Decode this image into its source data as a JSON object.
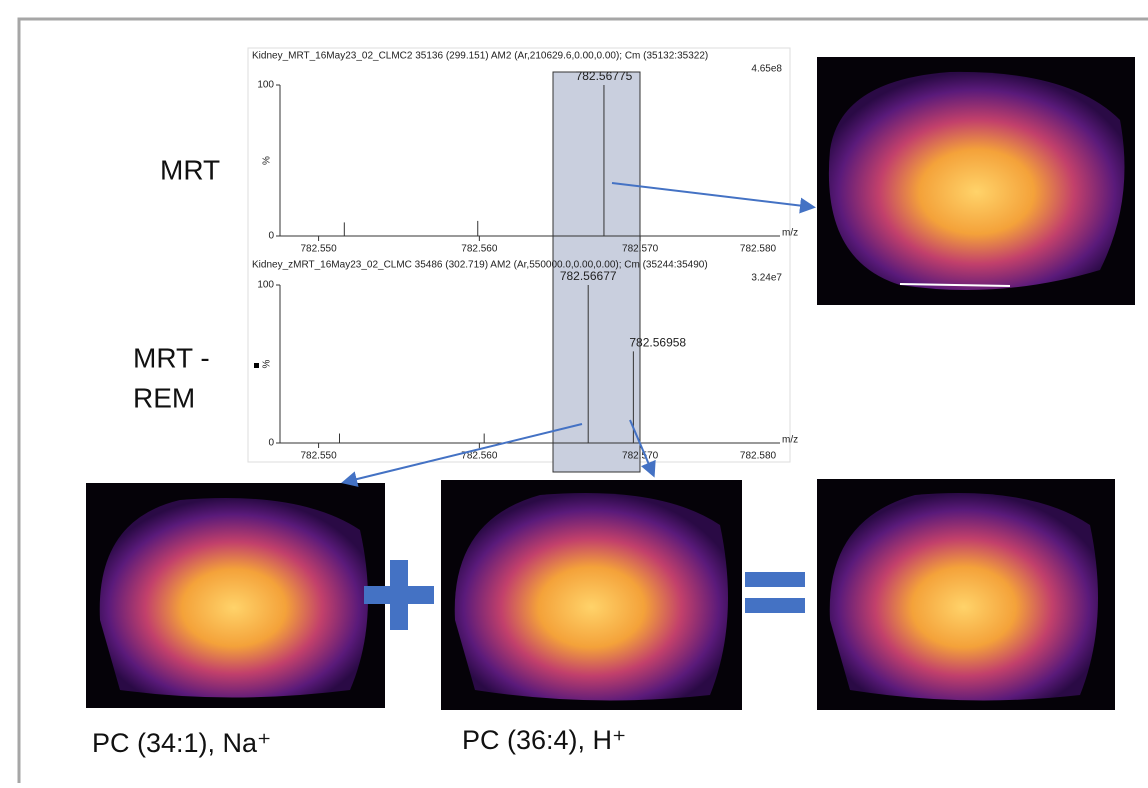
{
  "labels": {
    "mrt": "MRT",
    "mrt_rem_1": "MRT -",
    "mrt_rem_2": "REM",
    "image_1": "PC (34:1), Na⁺",
    "image_2": "PC (36:4), H⁺"
  },
  "spectra": [
    {
      "header": "Kidney_MRT_16May23_02_CLMC2 35136 (299.151) AM2 (Ar,210629.6,0.00,0.00); Cm (35132:35322)",
      "intensity": "4.65e8",
      "y_axis_label": "%",
      "x_axis_label": "m/z",
      "xlim": [
        782.5476,
        782.5787
      ],
      "ylim": [
        0,
        100
      ],
      "yticks": [
        0,
        100
      ],
      "xticks": [
        {
          "value": 782.55,
          "label": "782.550"
        },
        {
          "value": 782.56,
          "label": "782.560"
        },
        {
          "value": 782.57,
          "label": "782.570"
        },
        {
          "value": 782.58,
          "label": "782.580"
        }
      ],
      "peaks": [
        {
          "x": 782.5516,
          "y": 9
        },
        {
          "x": 782.5599,
          "y": 10
        },
        {
          "x": 782.56775,
          "y": 100,
          "label": "782.56775"
        }
      ]
    },
    {
      "header": "Kidney_zMRT_16May23_02_CLMC 35486 (302.719) AM2 (Ar,550000.0,0.00,0.00); Cm (35244:35490)",
      "intensity": "3.24e7",
      "y_axis_label": "%",
      "x_axis_label": "m/z",
      "xlim": [
        782.5476,
        782.5787
      ],
      "ylim": [
        0,
        100
      ],
      "yticks": [
        0,
        100
      ],
      "xticks": [
        {
          "value": 782.55,
          "label": "782.550"
        },
        {
          "value": 782.56,
          "label": "782.560"
        },
        {
          "value": 782.57,
          "label": "782.570"
        },
        {
          "value": 782.58,
          "label": "782.580"
        }
      ],
      "peaks": [
        {
          "x": 782.5513,
          "y": 6
        },
        {
          "x": 782.5603,
          "y": 6
        },
        {
          "x": 782.56677,
          "y": 100,
          "label": "782.56677"
        },
        {
          "x": 782.56958,
          "y": 58,
          "label": "782.56958"
        }
      ]
    }
  ]
}
